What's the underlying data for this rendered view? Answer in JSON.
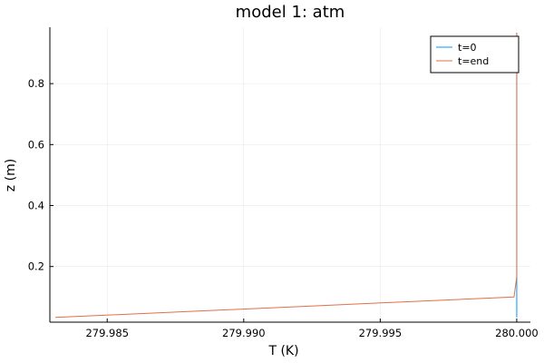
{
  "chart_data": {
    "type": "line",
    "title": "model 1: atm",
    "xlabel": "T (K)",
    "ylabel": "z (m)",
    "xlim": [
      279.9829,
      280.0005
    ],
    "ylim": [
      0.0175,
      0.985
    ],
    "grid": true,
    "legend_position": "top-right",
    "x_ticks": [
      279.985,
      279.99,
      279.995,
      280.0
    ],
    "x_tick_labels": [
      "279.985",
      "279.990",
      "279.995",
      "280.000"
    ],
    "y_ticks": [
      0.2,
      0.4,
      0.6,
      0.8
    ],
    "y_tick_labels": [
      "0.2",
      "0.4",
      "0.6",
      "0.8"
    ],
    "series": [
      {
        "name": "t=0",
        "color": "#009AFA",
        "x": [
          280.0,
          280.0
        ],
        "y": [
          0.033,
          0.967
        ]
      },
      {
        "name": "t=end",
        "color": "#E36F47",
        "x": [
          279.9831,
          279.9999,
          280.0,
          280.0,
          280.0
        ],
        "y": [
          0.033,
          0.1,
          0.167,
          0.233,
          0.967
        ]
      }
    ]
  }
}
